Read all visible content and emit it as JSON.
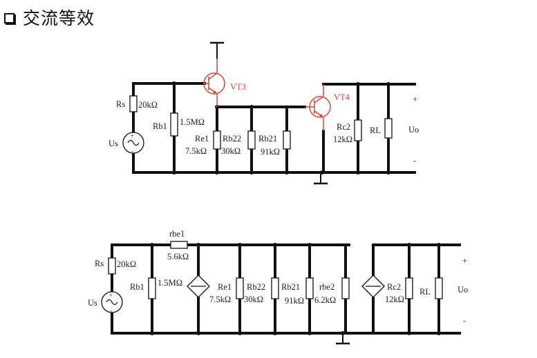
{
  "title": "交流等效",
  "colors": {
    "wire": "#111111",
    "transistor": "#e0453a"
  },
  "icons": {
    "bullet": "hollow-square-bullet"
  },
  "circuit1": {
    "rs_label": "Rs",
    "rs_value": "20kΩ",
    "us_label": "Us",
    "rb1_label": "Rb1",
    "rb1_value": "1.5MΩ",
    "vt3_label": "VT3",
    "re1_label": "Re1",
    "re1_value": "7.5kΩ",
    "rb22_label": "Rb22",
    "rb22_value": "30kΩ",
    "rb21_label": "Rb21",
    "rb21_value": "91kΩ",
    "vt4_label": "VT4",
    "rc2_label": "Rc2",
    "rc2_value": "12kΩ",
    "rl_label": "RL",
    "plus": "+",
    "uo": "Uo",
    "minus": "-"
  },
  "circuit2": {
    "rs_label": "Rs",
    "rs_value": "20kΩ",
    "us_label": "Us",
    "rb1_label": "Rb1",
    "rb1_value": "1.5MΩ",
    "rbe1_label": "rbe1",
    "rbe1_value": "5.6kΩ",
    "re1_label": "Re1",
    "re1_value": "7.5kΩ",
    "rb22_label": "Rb22",
    "rb22_value": "30kΩ",
    "rb21_label": "Rb21",
    "rb21_value": "91kΩ",
    "rbe2_label": "rbe2",
    "rbe2_value": "6.2kΩ",
    "rc2_label": "Rc2",
    "rc2_value": "12kΩ",
    "rl_label": "RL",
    "plus": "+",
    "uo": "Uo",
    "minus": "-"
  }
}
